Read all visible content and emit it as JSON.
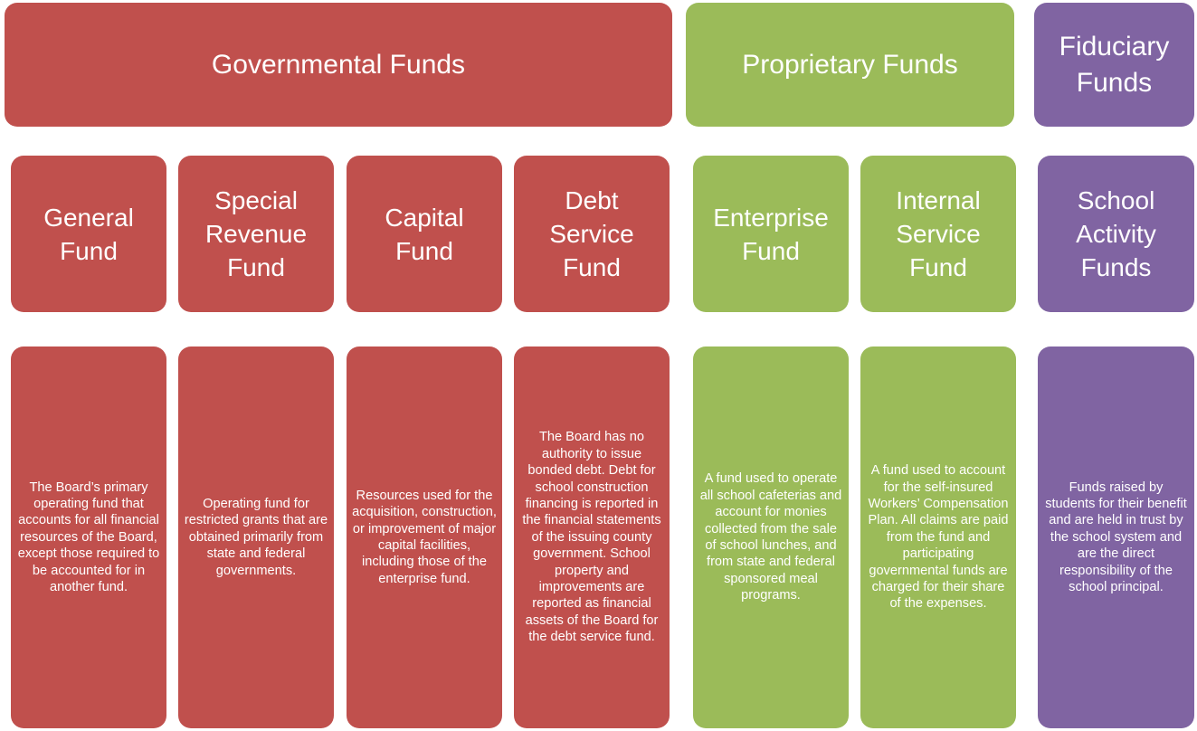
{
  "groups": [
    {
      "title": "Governmental Funds",
      "color": "#c0504d",
      "funds": [
        {
          "name": "General Fund",
          "description": "The Board’s primary operating fund that accounts for all financial resources of the Board, except those required to be accounted for in another fund."
        },
        {
          "name": "Special Revenue Fund",
          "description": "Operating fund for restricted grants that are obtained primarily from state and federal governments."
        },
        {
          "name": "Capital Fund",
          "description": "Resources used for the acquisition, construction, or improvement of major capital facilities, including those of the enterprise fund."
        },
        {
          "name": "Debt Service Fund",
          "description": "The Board has no authority to issue bonded debt. Debt for school construction financing is reported in the financial statements of the issuing county government. School property and improvements are reported as financial assets of the Board for the debt service fund."
        }
      ]
    },
    {
      "title": "Proprietary Funds",
      "color": "#9bbb59",
      "funds": [
        {
          "name": "Enterprise Fund",
          "description": "A fund used to operate all school cafeterias and account for monies collected from the sale of school lunches, and from state and federal sponsored meal programs."
        },
        {
          "name": "Internal Service Fund",
          "description": "A fund used to account for the self-insured Workers’ Compensation Plan. All claims are paid from the fund and participating governmental funds are charged for their share of the expenses."
        }
      ]
    },
    {
      "title": "Fiduciary Funds",
      "color": "#8064a2",
      "funds": [
        {
          "name": "School Activity Funds",
          "description": "Funds raised by students for their benefit and are held in trust by the school system and are the direct responsibility of the school principal."
        }
      ]
    }
  ]
}
